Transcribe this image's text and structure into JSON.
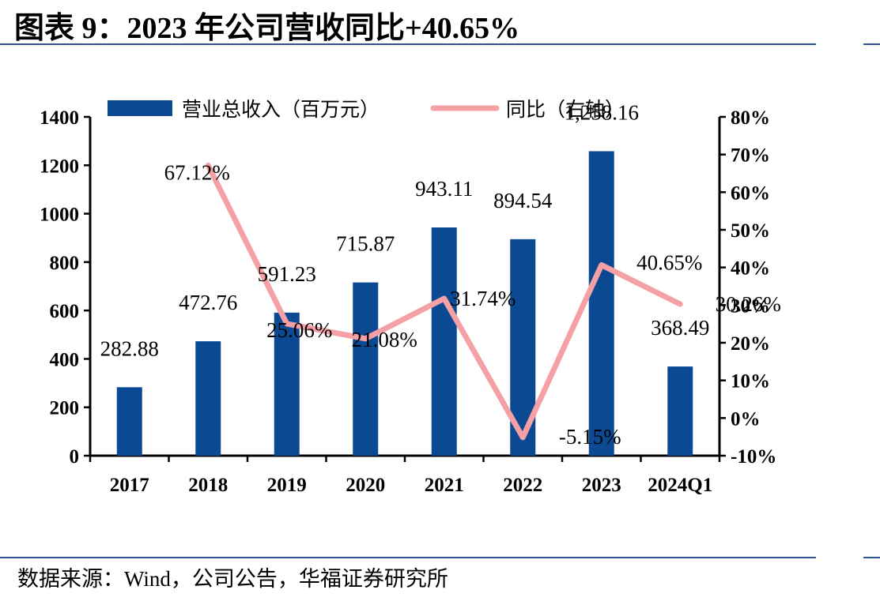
{
  "page": {
    "title": "图表 9：2023 年公司营收同比+40.65%",
    "source": "数据来源：Wind，公司公告，华福证券研究所"
  },
  "chart_data": {
    "type": "bar",
    "categories": [
      "2017",
      "2018",
      "2019",
      "2020",
      "2021",
      "2022",
      "2023",
      "2024Q1"
    ],
    "series": [
      {
        "name": "营业总收入（百万元）",
        "type": "bar",
        "axis": "left",
        "color": "#0b4a93",
        "values": [
          282.88,
          472.76,
          591.23,
          715.87,
          943.11,
          894.54,
          1258.16,
          368.49
        ],
        "labels": [
          "282.88",
          "472.76",
          "591.23",
          "715.87",
          "943.11",
          "894.54",
          "1,258.16",
          "368.49"
        ]
      },
      {
        "name": "同比（右轴）",
        "type": "line",
        "axis": "right",
        "color": "#f4a0a4",
        "values": [
          null,
          67.12,
          25.06,
          21.08,
          31.74,
          -5.15,
          40.65,
          30.26
        ],
        "labels": [
          "",
          "67.12%",
          "25.06%",
          "21.08%",
          "31.74%",
          "-5.15%",
          "40.65%",
          "30.26%"
        ]
      }
    ],
    "y_left": {
      "min": 0,
      "max": 1400,
      "ticks": [
        "0",
        "200",
        "400",
        "600",
        "800",
        "1000",
        "1200",
        "1400"
      ]
    },
    "y_right": {
      "min": -10,
      "max": 80,
      "ticks": [
        "-10%",
        "0%",
        "10%",
        "20%",
        "30%",
        "40%",
        "50%",
        "60%",
        "70%",
        "80%"
      ]
    },
    "legend_position": "top",
    "grid": false
  }
}
